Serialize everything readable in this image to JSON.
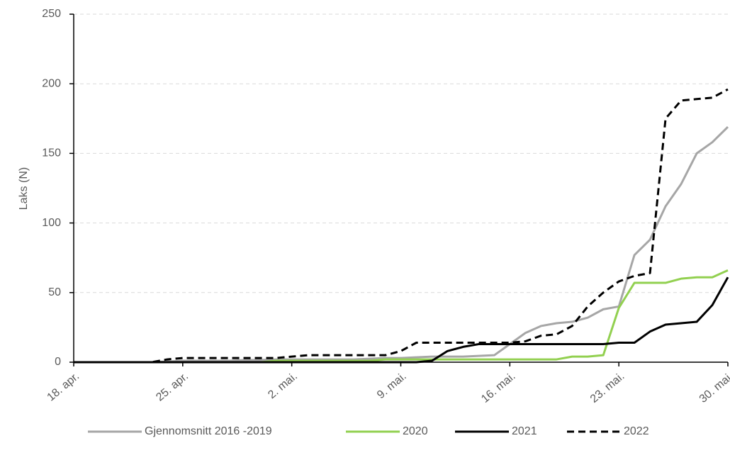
{
  "chart_data": {
    "type": "line",
    "ylabel": "Laks (N)",
    "categories": [
      "18. apr.",
      null,
      null,
      null,
      null,
      null,
      null,
      "25. apr.",
      null,
      null,
      null,
      null,
      null,
      null,
      "2. mai.",
      null,
      null,
      null,
      null,
      null,
      null,
      "9. mai.",
      null,
      null,
      null,
      null,
      null,
      null,
      "16. mai.",
      null,
      null,
      null,
      null,
      null,
      null,
      "23. mai.",
      null,
      null,
      null,
      null,
      null,
      null,
      "30. mai."
    ],
    "series": [
      {
        "name": "Gjennomsnitt 2016 -2019",
        "color": "#a6a6a6",
        "dashed": false,
        "values": [
          0,
          0,
          0,
          0,
          0,
          0,
          0.5,
          1,
          1,
          1,
          1,
          1.5,
          1.5,
          2,
          2,
          2,
          2,
          2,
          2,
          2.5,
          3,
          3,
          3.5,
          4,
          4,
          4,
          4.5,
          5,
          13,
          21,
          26,
          28,
          29,
          32,
          38,
          40,
          77,
          88,
          112,
          128,
          150,
          158,
          169
        ]
      },
      {
        "name": "2020",
        "color": "#92d050",
        "dashed": false,
        "values": [
          0,
          0,
          0,
          0,
          0,
          0,
          0,
          0,
          0,
          0,
          0,
          0,
          0,
          1,
          1,
          1,
          1,
          1,
          1,
          1,
          2,
          2,
          2,
          2,
          2,
          2,
          2,
          2,
          2,
          2,
          2,
          2,
          4,
          4,
          5,
          39,
          57,
          57,
          57,
          60,
          61,
          61,
          66
        ]
      },
      {
        "name": "2021",
        "color": "#000000",
        "dashed": false,
        "values": [
          0,
          0,
          0,
          0,
          0,
          0,
          0,
          0,
          0,
          0,
          0,
          0,
          0,
          0,
          0,
          0,
          0,
          0,
          0,
          0,
          0,
          0,
          0,
          1,
          8,
          11,
          13,
          13,
          13,
          13,
          13,
          13,
          13,
          13,
          13,
          14,
          14,
          22,
          27,
          28,
          29,
          41,
          61
        ]
      },
      {
        "name": "2022",
        "color": "#000000",
        "dashed": true,
        "values": [
          0,
          0,
          0,
          0,
          0,
          0,
          2,
          3,
          3,
          3,
          3,
          3,
          3,
          3,
          4,
          5,
          5,
          5,
          5,
          5,
          5,
          8,
          14,
          14,
          14,
          14,
          14,
          14,
          14,
          15,
          19,
          20,
          26,
          40,
          50,
          58,
          62,
          64,
          175,
          188,
          189,
          190,
          196
        ]
      }
    ],
    "ylim": [
      0,
      250
    ],
    "yticks": [
      0,
      50,
      100,
      150,
      200,
      250
    ],
    "grid": true,
    "legend": "bottom"
  }
}
